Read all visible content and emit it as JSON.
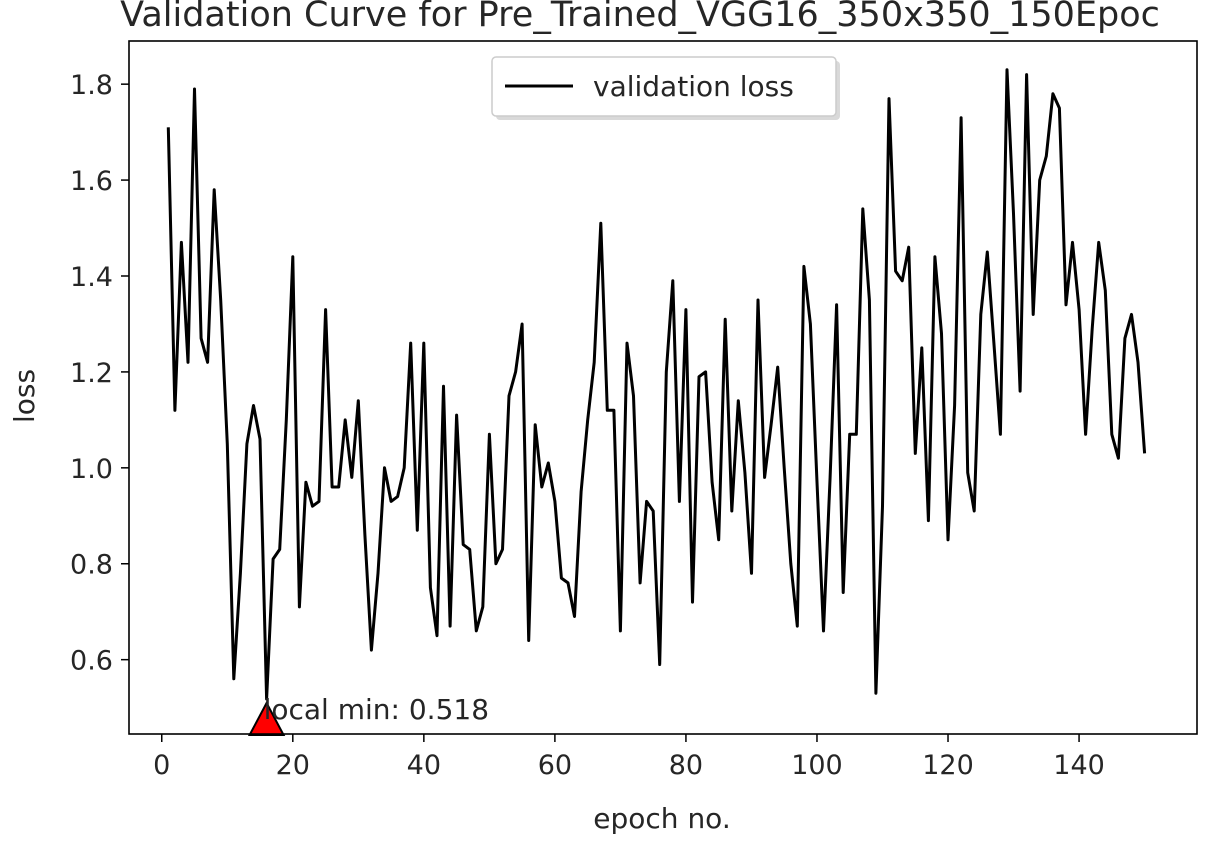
{
  "chart_data": {
    "type": "line",
    "title": "Validation Curve for Pre_Trained_VGG16_350x350_150Epoc",
    "xlabel": "epoch no.",
    "ylabel": "loss",
    "xlim": [
      -5,
      158
    ],
    "ylim": [
      0.445,
      1.89
    ],
    "xticks": [
      0,
      20,
      40,
      60,
      80,
      100,
      120,
      140
    ],
    "xtick_labels": [
      "0",
      "20",
      "40",
      "60",
      "80",
      "100",
      "120",
      "140"
    ],
    "yticks": [
      0.6,
      0.8,
      1.0,
      1.2,
      1.4,
      1.6,
      1.8
    ],
    "ytick_labels": [
      "0.6",
      "0.8",
      "1.0",
      "1.2",
      "1.4",
      "1.6",
      "1.8"
    ],
    "grid": false,
    "legend_position": "upper center",
    "series": [
      {
        "name": "validation loss",
        "color": "#000000",
        "x": [
          1,
          2,
          3,
          4,
          5,
          6,
          7,
          8,
          9,
          10,
          11,
          12,
          13,
          14,
          15,
          16,
          17,
          18,
          19,
          20,
          21,
          22,
          23,
          24,
          25,
          26,
          27,
          28,
          29,
          30,
          31,
          32,
          33,
          34,
          35,
          36,
          37,
          38,
          39,
          40,
          41,
          42,
          43,
          44,
          45,
          46,
          47,
          48,
          49,
          50,
          51,
          52,
          53,
          54,
          55,
          56,
          57,
          58,
          59,
          60,
          61,
          62,
          63,
          64,
          65,
          66,
          67,
          68,
          69,
          70,
          71,
          72,
          73,
          74,
          75,
          76,
          77,
          78,
          79,
          80,
          81,
          82,
          83,
          84,
          85,
          86,
          87,
          88,
          89,
          90,
          91,
          92,
          93,
          94,
          95,
          96,
          97,
          98,
          99,
          100,
          101,
          102,
          103,
          104,
          105,
          106,
          107,
          108,
          109,
          110,
          111,
          112,
          113,
          114,
          115,
          116,
          117,
          118,
          119,
          120,
          121,
          122,
          123,
          124,
          125,
          126,
          127,
          128,
          129,
          130,
          131,
          132,
          133,
          134,
          135,
          136,
          137,
          138,
          139,
          140,
          141,
          142,
          143,
          144,
          145,
          146,
          147,
          148,
          149,
          150
        ],
        "y": [
          1.71,
          1.12,
          1.47,
          1.22,
          1.79,
          1.27,
          1.22,
          1.58,
          1.35,
          1.05,
          0.56,
          0.78,
          1.05,
          1.13,
          1.06,
          0.518,
          0.81,
          0.83,
          1.1,
          1.44,
          0.71,
          0.97,
          0.92,
          0.93,
          1.33,
          0.96,
          0.96,
          1.1,
          0.98,
          1.14,
          0.86,
          0.62,
          0.78,
          1.0,
          0.93,
          0.94,
          1.0,
          1.26,
          0.87,
          1.26,
          0.75,
          0.65,
          1.17,
          0.67,
          1.11,
          0.84,
          0.83,
          0.66,
          0.71,
          1.07,
          0.8,
          0.83,
          1.15,
          1.2,
          1.3,
          0.64,
          1.09,
          0.96,
          1.01,
          0.93,
          0.77,
          0.76,
          0.69,
          0.95,
          1.1,
          1.22,
          1.51,
          1.12,
          1.12,
          0.66,
          1.26,
          1.15,
          0.76,
          0.93,
          0.91,
          0.59,
          1.2,
          1.39,
          0.93,
          1.33,
          0.72,
          1.19,
          1.2,
          0.97,
          0.85,
          1.31,
          0.91,
          1.14,
          0.99,
          0.78,
          1.35,
          0.98,
          1.09,
          1.21,
          1.0,
          0.8,
          0.67,
          1.42,
          1.3,
          0.97,
          0.66,
          0.98,
          1.34,
          0.74,
          1.07,
          1.07,
          1.54,
          1.35,
          0.53,
          0.92,
          1.77,
          1.41,
          1.39,
          1.46,
          1.03,
          1.25,
          0.89,
          1.44,
          1.28,
          0.85,
          1.13,
          1.73,
          0.99,
          0.91,
          1.32,
          1.45,
          1.26,
          1.07,
          1.83,
          1.53,
          1.16,
          1.82,
          1.32,
          1.6,
          1.65,
          1.78,
          1.75,
          1.34,
          1.47,
          1.33,
          1.07,
          1.29,
          1.47,
          1.37,
          1.07,
          1.02,
          1.27,
          1.32,
          1.22,
          1.03
        ]
      }
    ],
    "annotations": [
      {
        "text": "local min: 0.518",
        "x": 16,
        "y": 0.518,
        "marker": "triangle",
        "marker_color": "#ff0000"
      }
    ]
  }
}
